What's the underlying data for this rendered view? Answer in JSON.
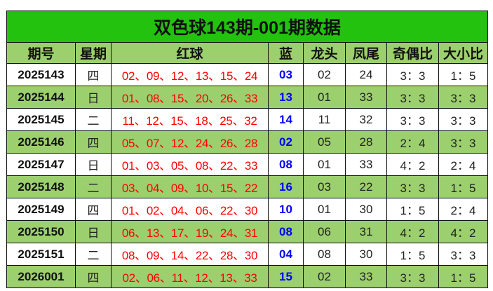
{
  "title": "双色球143期-001期数据",
  "headers": [
    "期号",
    "星期",
    "红球",
    "蓝",
    "龙头",
    "凤尾",
    "奇偶比",
    "大小比"
  ],
  "rows": [
    [
      "2025143",
      "四",
      "02、09、12、13、15、24",
      "03",
      "02",
      "24",
      "3：3",
      "1：5"
    ],
    [
      "2025144",
      "日",
      "01、08、15、20、26、33",
      "13",
      "01",
      "33",
      "3：3",
      "3：3"
    ],
    [
      "2025145",
      "二",
      "11、12、15、18、25、32",
      "14",
      "11",
      "32",
      "3：3",
      "3：3"
    ],
    [
      "2025146",
      "四",
      "05、07、12、24、26、28",
      "02",
      "05",
      "28",
      "2：4",
      "3：3"
    ],
    [
      "2025147",
      "日",
      "01、03、05、08、22、33",
      "08",
      "01",
      "33",
      "4：2",
      "2：4"
    ],
    [
      "2025148",
      "二",
      "03、04、09、10、15、22",
      "16",
      "03",
      "22",
      "3：3",
      "1：5"
    ],
    [
      "2025149",
      "四",
      "01、02、04、06、22、30",
      "10",
      "01",
      "30",
      "1：5",
      "2：4"
    ],
    [
      "2025150",
      "日",
      "06、13、17、19、24、31",
      "08",
      "06",
      "31",
      "4：2",
      "4：2"
    ],
    [
      "2025151",
      "二",
      "08、09、14、22、28、30",
      "04",
      "08",
      "30",
      "1：5",
      "3：3"
    ],
    [
      "2026001",
      "四",
      "02、06、11、12、13、33",
      "15",
      "02",
      "33",
      "3：3",
      "1：5"
    ]
  ],
  "colors": {
    "title_bg": "#22c20e",
    "header_bg": "#9cd06c",
    "red_ball": "#ff0000",
    "blue_ball": "#0000ff"
  }
}
